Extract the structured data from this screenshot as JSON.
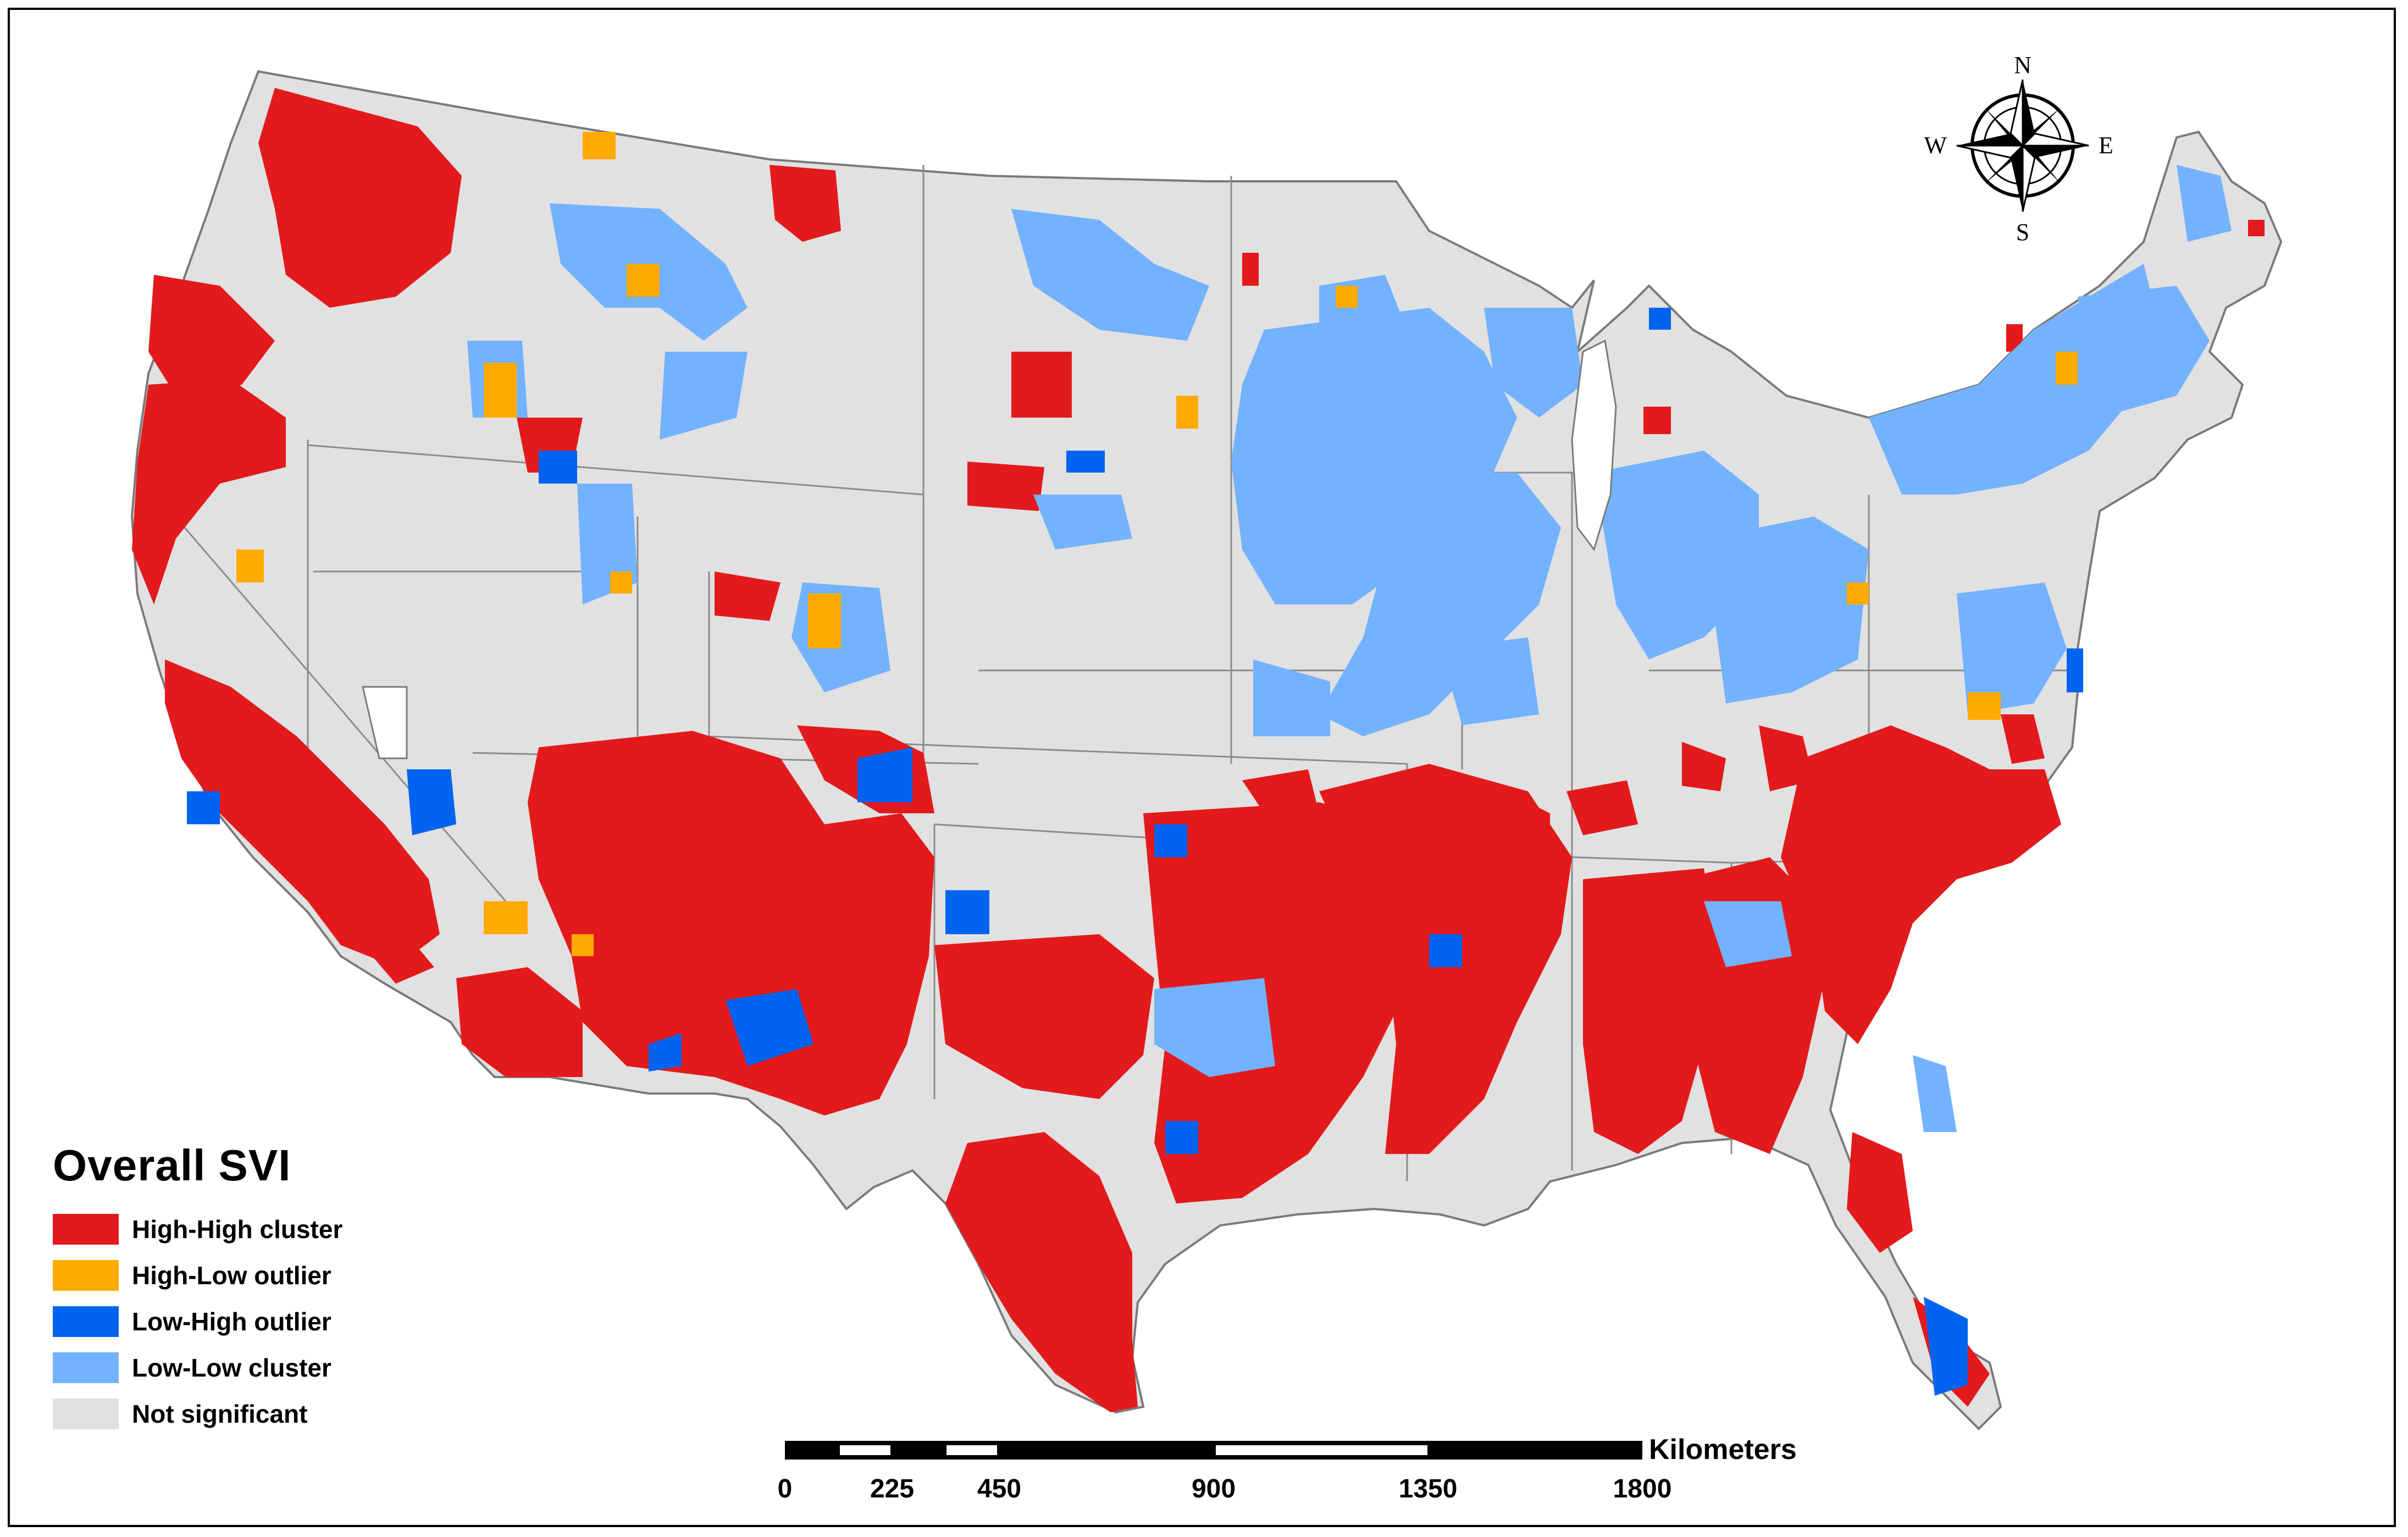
{
  "legend": {
    "title": "Overall SVI",
    "items": [
      {
        "label": "High-High cluster",
        "color": "#e31a1c"
      },
      {
        "label": "High-Low outlier",
        "color": "#ffaa00"
      },
      {
        "label": "Low-High outlier",
        "color": "#0064f0"
      },
      {
        "label": "Low-Low cluster",
        "color": "#73b2ff"
      },
      {
        "label": "Not significant",
        "color": "#e1e1e1"
      }
    ]
  },
  "compass": {
    "n": "N",
    "s": "S",
    "e": "E",
    "w": "W"
  },
  "scale_bar": {
    "unit": "Kilometers",
    "ticks": [
      "0",
      "225",
      "450",
      "900",
      "1350",
      "1800"
    ]
  },
  "colors": {
    "high_high": "#e31a1c",
    "high_low": "#ffaa00",
    "low_high": "#0064f0",
    "low_low": "#73b2ff",
    "not_significant": "#e1e1e1",
    "boundary": "#7a7a7a"
  }
}
